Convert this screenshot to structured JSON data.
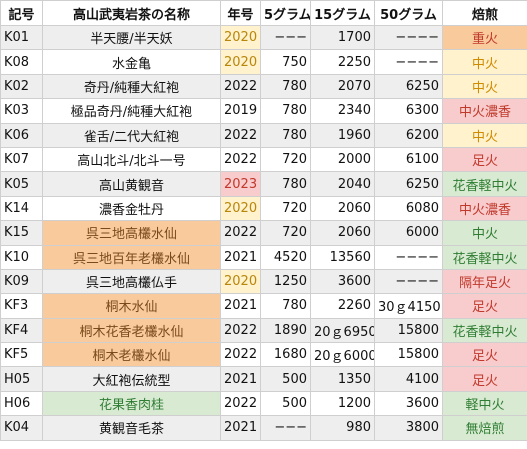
{
  "headers": [
    "記号",
    "高山武夷岩茶の名称",
    "年号",
    "5グラム",
    "15グラム",
    "50グラム",
    "焙煎"
  ],
  "rows": [
    {
      "code": "K01",
      "name": "半天腰/半天妖",
      "year": "2020",
      "g5": "−−−",
      "g15": "1700",
      "g50": "−−−−",
      "fire": "重火",
      "shade": true,
      "name_hl": "",
      "year_hl": "yellow",
      "fire_hl": "orange"
    },
    {
      "code": "K08",
      "name": "水金亀",
      "year": "2020",
      "g5": "750",
      "g15": "2250",
      "g50": "−−−−",
      "fire": "中火",
      "shade": false,
      "name_hl": "",
      "year_hl": "yellow",
      "fire_hl": "yellow"
    },
    {
      "code": "K02",
      "name": "奇丹/純種大紅袍",
      "year": "2022",
      "g5": "780",
      "g15": "2070",
      "g50": "6250",
      "fire": "中火",
      "shade": true,
      "name_hl": "",
      "year_hl": "",
      "fire_hl": "yellow"
    },
    {
      "code": "K03",
      "name": "極品奇丹/純種大紅袍",
      "year": "2019",
      "g5": "780",
      "g15": "2340",
      "g50": "6300",
      "fire": "中火濃香",
      "shade": false,
      "name_hl": "",
      "year_hl": "",
      "fire_hl": "pink"
    },
    {
      "code": "K06",
      "name": "雀舌/二代大紅袍",
      "year": "2022",
      "g5": "780",
      "g15": "1960",
      "g50": "6200",
      "fire": "中火",
      "shade": true,
      "name_hl": "",
      "year_hl": "",
      "fire_hl": "yellow"
    },
    {
      "code": "K07",
      "name": "高山北斗/北斗一号",
      "year": "2022",
      "g5": "720",
      "g15": "2000",
      "g50": "6100",
      "fire": "足火",
      "shade": false,
      "name_hl": "",
      "year_hl": "",
      "fire_hl": "pink"
    },
    {
      "code": "K05",
      "name": "高山黄観音",
      "year": "2023",
      "g5": "780",
      "g15": "2040",
      "g50": "6250",
      "fire": "花香軽中火",
      "shade": true,
      "name_hl": "",
      "year_hl": "pink",
      "fire_hl": "green"
    },
    {
      "code": "K14",
      "name": "濃香金牡丹",
      "year": "2020",
      "g5": "720",
      "g15": "2060",
      "g50": "6080",
      "fire": "中火濃香",
      "shade": false,
      "name_hl": "",
      "year_hl": "yellow",
      "fire_hl": "pink"
    },
    {
      "code": "K15",
      "name": "呉三地高欉水仙",
      "year": "2022",
      "g5": "720",
      "g15": "2060",
      "g50": "6000",
      "fire": "中火",
      "shade": true,
      "name_hl": "orange",
      "year_hl": "",
      "fire_hl": "green"
    },
    {
      "code": "K10",
      "name": "呉三地百年老欉水仙",
      "year": "2021",
      "g5": "4520",
      "g15": "13560",
      "g50": "−−−−",
      "fire": "花香軽中火",
      "shade": false,
      "name_hl": "orange",
      "year_hl": "",
      "fire_hl": "green"
    },
    {
      "code": "K09",
      "name": "呉三地高欉仏手",
      "year": "2020",
      "g5": "1250",
      "g15": "3600",
      "g50": "−−−−",
      "fire": "隔年足火",
      "shade": true,
      "name_hl": "",
      "year_hl": "yellow",
      "fire_hl": "pink"
    },
    {
      "code": "KF3",
      "name": "桐木水仙",
      "year": "2021",
      "g5": "780",
      "g15": "2260",
      "g50": "30ｇ4150",
      "fire": "足火",
      "shade": false,
      "name_hl": "orange",
      "year_hl": "",
      "fire_hl": "pink"
    },
    {
      "code": "KF4",
      "name": "桐木花香老欉水仙",
      "year": "2022",
      "g5": "1890",
      "g15": "20ｇ6950",
      "g50": "15800",
      "fire": "花香軽中火",
      "shade": true,
      "name_hl": "orange",
      "year_hl": "",
      "fire_hl": "green"
    },
    {
      "code": "KF5",
      "name": "桐木老欉水仙",
      "year": "2022",
      "g5": "1680",
      "g15": "20ｇ6000",
      "g50": "15800",
      "fire": "足火",
      "shade": false,
      "name_hl": "orange",
      "year_hl": "",
      "fire_hl": "pink"
    },
    {
      "code": "H05",
      "name": "大紅袍伝統型",
      "year": "2021",
      "g5": "500",
      "g15": "1350",
      "g50": "4100",
      "fire": "足火",
      "shade": true,
      "name_hl": "",
      "year_hl": "",
      "fire_hl": "pink"
    },
    {
      "code": "H06",
      "name": "花果香肉桂",
      "year": "2022",
      "g5": "500",
      "g15": "1200",
      "g50": "3600",
      "fire": "軽中火",
      "shade": false,
      "name_hl": "green",
      "year_hl": "",
      "fire_hl": "green"
    },
    {
      "code": "K04",
      "name": "黄観音毛茶",
      "year": "2021",
      "g5": "−−−",
      "g15": "980",
      "g50": "3800",
      "fire": "無焙煎",
      "shade": true,
      "name_hl": "",
      "year_hl": "",
      "fire_hl": "green"
    }
  ],
  "colors": {
    "yellow": "#fff2cc",
    "pink": "#f8cbcd",
    "orange": "#f9cb9c",
    "green": "#d9ead3",
    "shade": "#eeeeee"
  }
}
